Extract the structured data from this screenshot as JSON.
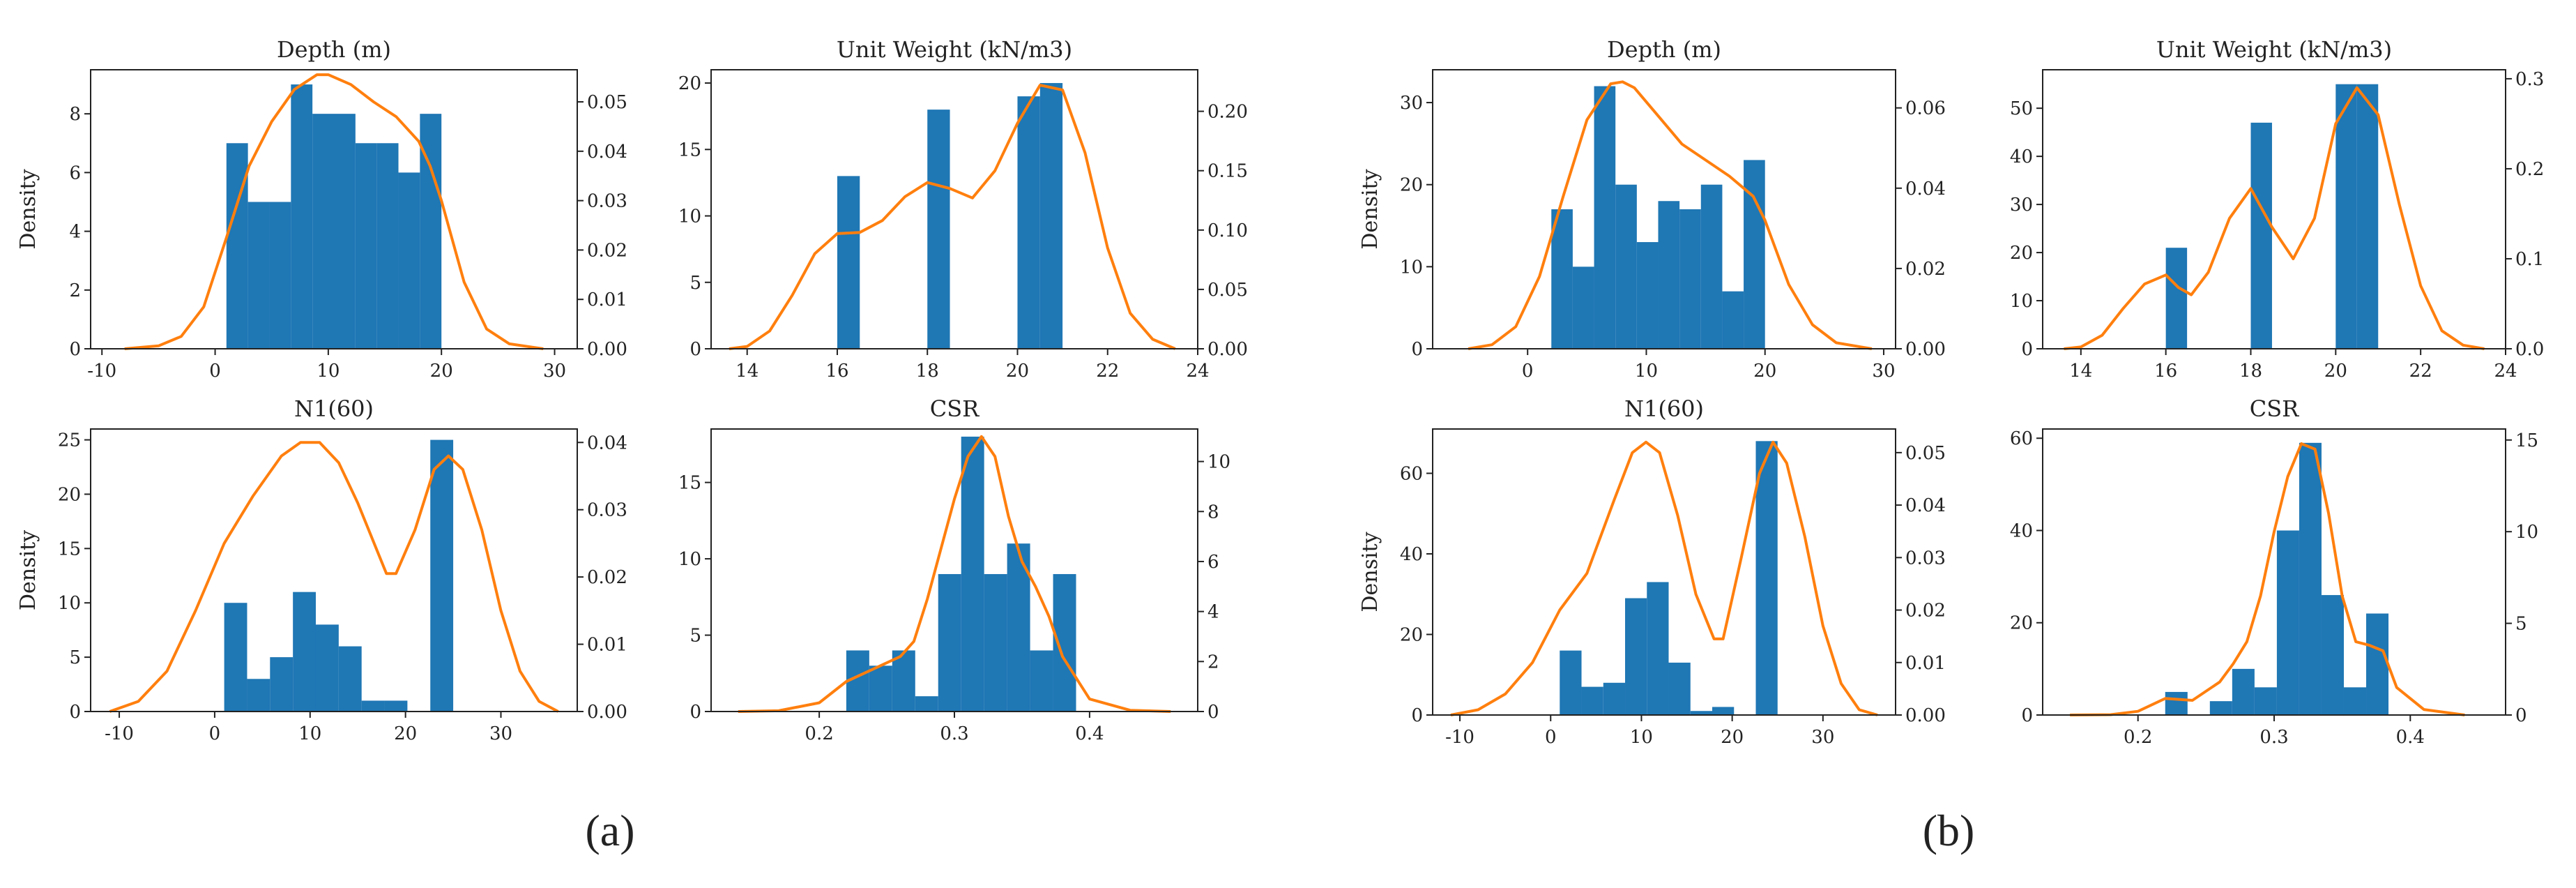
{
  "colors": {
    "bar": "#1f77b4",
    "kde": "#ff7f0e",
    "axis": "#222222"
  },
  "panel_labels": [
    "(a)",
    "(b)"
  ],
  "chart_data": [
    {
      "type": "bar",
      "group": "(a)",
      "title": "Depth (m)",
      "ylabel": "Density",
      "xlim": [
        -11,
        32
      ],
      "xticks": [
        -10,
        0,
        10,
        20,
        30
      ],
      "ylim": [
        0,
        9.5
      ],
      "yticks": [
        0,
        2,
        4,
        6,
        8
      ],
      "y2lim": [
        0,
        0.0565
      ],
      "y2ticks": [
        0.0,
        0.01,
        0.02,
        0.03,
        0.04,
        0.05
      ],
      "y2format": 2,
      "bins": [
        [
          1,
          2.9,
          7
        ],
        [
          2.9,
          4.8,
          5
        ],
        [
          4.8,
          6.7,
          5
        ],
        [
          6.7,
          8.6,
          9
        ],
        [
          8.6,
          10.5,
          8
        ],
        [
          10.5,
          12.4,
          8
        ],
        [
          12.4,
          14.3,
          7
        ],
        [
          14.3,
          16.2,
          7
        ],
        [
          16.2,
          18.1,
          6
        ],
        [
          18.1,
          20,
          8
        ]
      ],
      "kde": [
        [
          -8,
          0.0
        ],
        [
          -5,
          0.0006
        ],
        [
          -3,
          0.0025
        ],
        [
          -1,
          0.0085
        ],
        [
          1,
          0.0225
        ],
        [
          3,
          0.037
        ],
        [
          5,
          0.046
        ],
        [
          7,
          0.0525
        ],
        [
          9,
          0.0555
        ],
        [
          10,
          0.0555
        ],
        [
          12,
          0.0535
        ],
        [
          14,
          0.05
        ],
        [
          16,
          0.047
        ],
        [
          18,
          0.042
        ],
        [
          19,
          0.037
        ],
        [
          20,
          0.03
        ],
        [
          22,
          0.0135
        ],
        [
          24,
          0.004
        ],
        [
          26,
          0.001
        ],
        [
          29,
          0.0
        ]
      ]
    },
    {
      "type": "bar",
      "group": "(a)",
      "title": "Unit Weight (kN/m3)",
      "ylabel": "",
      "xlim": [
        13.2,
        24
      ],
      "xticks": [
        14,
        16,
        18,
        20,
        22,
        24
      ],
      "ylim": [
        0,
        21
      ],
      "yticks": [
        0,
        5,
        10,
        15,
        20
      ],
      "y2lim": [
        0,
        0.235
      ],
      "y2ticks": [
        0.0,
        0.05,
        0.1,
        0.15,
        0.2
      ],
      "y2format": 2,
      "bins": [
        [
          16,
          16.5,
          13
        ],
        [
          18,
          18.5,
          18
        ],
        [
          20,
          20.5,
          19
        ],
        [
          20.5,
          21,
          20
        ]
      ],
      "kde": [
        [
          13.6,
          0.0
        ],
        [
          14,
          0.002
        ],
        [
          14.5,
          0.015
        ],
        [
          15,
          0.045
        ],
        [
          15.5,
          0.08
        ],
        [
          16,
          0.097
        ],
        [
          16.5,
          0.098
        ],
        [
          17,
          0.108
        ],
        [
          17.5,
          0.128
        ],
        [
          18,
          0.14
        ],
        [
          18.5,
          0.135
        ],
        [
          19,
          0.127
        ],
        [
          19.5,
          0.15
        ],
        [
          20,
          0.19
        ],
        [
          20.5,
          0.222
        ],
        [
          21,
          0.218
        ],
        [
          21.5,
          0.165
        ],
        [
          22,
          0.085
        ],
        [
          22.5,
          0.03
        ],
        [
          23,
          0.008
        ],
        [
          23.5,
          0.0
        ]
      ]
    },
    {
      "type": "bar",
      "group": "(a)",
      "title": "N1(60)",
      "ylabel": "Density",
      "xlim": [
        -13,
        38
      ],
      "xticks": [
        -10,
        0,
        10,
        20,
        30
      ],
      "ylim": [
        0,
        26
      ],
      "yticks": [
        0,
        5,
        10,
        15,
        20,
        25
      ],
      "y2lim": [
        0,
        0.042
      ],
      "y2ticks": [
        0.0,
        0.01,
        0.02,
        0.03,
        0.04
      ],
      "y2format": 2,
      "bins": [
        [
          1,
          3.4,
          10
        ],
        [
          3.4,
          5.8,
          3
        ],
        [
          5.8,
          8.2,
          5
        ],
        [
          8.2,
          10.6,
          11
        ],
        [
          10.6,
          13,
          8
        ],
        [
          13,
          15.4,
          6
        ],
        [
          15.4,
          17.8,
          1
        ],
        [
          17.8,
          20.2,
          1
        ],
        [
          22.6,
          25,
          25
        ]
      ],
      "kde": [
        [
          -11,
          0.0
        ],
        [
          -8,
          0.0015
        ],
        [
          -5,
          0.006
        ],
        [
          -2,
          0.015
        ],
        [
          1,
          0.025
        ],
        [
          4,
          0.032
        ],
        [
          7,
          0.038
        ],
        [
          9,
          0.04
        ],
        [
          11,
          0.04
        ],
        [
          13,
          0.037
        ],
        [
          15,
          0.031
        ],
        [
          17,
          0.024
        ],
        [
          18,
          0.0205
        ],
        [
          19,
          0.0205
        ],
        [
          21,
          0.027
        ],
        [
          23,
          0.036
        ],
        [
          24.5,
          0.038
        ],
        [
          26,
          0.036
        ],
        [
          28,
          0.027
        ],
        [
          30,
          0.015
        ],
        [
          32,
          0.006
        ],
        [
          34,
          0.0015
        ],
        [
          36,
          0.0
        ]
      ]
    },
    {
      "type": "bar",
      "group": "(a)",
      "title": "CSR",
      "ylabel": "",
      "xlim": [
        0.12,
        0.48
      ],
      "xticks": [
        0.2,
        0.3,
        0.4
      ],
      "ylim": [
        0,
        18.5
      ],
      "yticks": [
        0,
        5,
        10,
        15
      ],
      "y2lim": [
        0,
        11.3
      ],
      "y2ticks": [
        0,
        2,
        4,
        6,
        8,
        10
      ],
      "y2format": 0,
      "bins": [
        [
          0.22,
          0.237,
          4
        ],
        [
          0.237,
          0.254,
          3
        ],
        [
          0.254,
          0.271,
          4
        ],
        [
          0.271,
          0.288,
          1
        ],
        [
          0.288,
          0.305,
          9
        ],
        [
          0.305,
          0.322,
          18
        ],
        [
          0.322,
          0.339,
          9
        ],
        [
          0.339,
          0.356,
          11
        ],
        [
          0.356,
          0.373,
          4
        ],
        [
          0.373,
          0.39,
          9
        ]
      ],
      "kde": [
        [
          0.14,
          0.0
        ],
        [
          0.17,
          0.03
        ],
        [
          0.2,
          0.35
        ],
        [
          0.22,
          1.2
        ],
        [
          0.24,
          1.7
        ],
        [
          0.26,
          2.2
        ],
        [
          0.27,
          2.8
        ],
        [
          0.28,
          4.5
        ],
        [
          0.29,
          6.5
        ],
        [
          0.3,
          8.5
        ],
        [
          0.31,
          10.2
        ],
        [
          0.32,
          11.0
        ],
        [
          0.33,
          10.2
        ],
        [
          0.34,
          7.8
        ],
        [
          0.35,
          6.0
        ],
        [
          0.36,
          5.0
        ],
        [
          0.37,
          3.8
        ],
        [
          0.38,
          2.2
        ],
        [
          0.4,
          0.5
        ],
        [
          0.43,
          0.05
        ],
        [
          0.46,
          0.0
        ]
      ]
    },
    {
      "type": "bar",
      "group": "(b)",
      "title": "Depth (m)",
      "ylabel": "Density",
      "xlim": [
        -8,
        31
      ],
      "xticks": [
        0,
        10,
        20,
        30
      ],
      "ylim": [
        0,
        34
      ],
      "yticks": [
        0,
        10,
        20,
        30
      ],
      "y2lim": [
        0,
        0.0695
      ],
      "y2ticks": [
        0.0,
        0.02,
        0.04,
        0.06
      ],
      "y2format": 2,
      "bins": [
        [
          2,
          3.8,
          17
        ],
        [
          3.8,
          5.6,
          10
        ],
        [
          5.6,
          7.4,
          32
        ],
        [
          7.4,
          9.2,
          20
        ],
        [
          9.2,
          11,
          13
        ],
        [
          11,
          12.8,
          18
        ],
        [
          12.8,
          14.6,
          17
        ],
        [
          14.6,
          16.4,
          20
        ],
        [
          16.4,
          18.2,
          7
        ],
        [
          18.2,
          20,
          23
        ]
      ],
      "kde": [
        [
          -5,
          0.0
        ],
        [
          -3,
          0.001
        ],
        [
          -1,
          0.0055
        ],
        [
          1,
          0.018
        ],
        [
          3,
          0.038
        ],
        [
          5,
          0.057
        ],
        [
          7,
          0.066
        ],
        [
          8,
          0.0665
        ],
        [
          9,
          0.065
        ],
        [
          11,
          0.058
        ],
        [
          13,
          0.051
        ],
        [
          15,
          0.047
        ],
        [
          17,
          0.043
        ],
        [
          19,
          0.038
        ],
        [
          20,
          0.032
        ],
        [
          22,
          0.016
        ],
        [
          24,
          0.006
        ],
        [
          26,
          0.0015
        ],
        [
          29,
          0.0
        ]
      ]
    },
    {
      "type": "bar",
      "group": "(b)",
      "title": "Unit Weight (kN/m3)",
      "ylabel": "",
      "xlim": [
        13.1,
        24
      ],
      "xticks": [
        14,
        16,
        18,
        20,
        22,
        24
      ],
      "ylim": [
        0,
        58
      ],
      "yticks": [
        0,
        10,
        20,
        30,
        40,
        50
      ],
      "y2lim": [
        0,
        0.31
      ],
      "y2ticks": [
        0.0,
        0.1,
        0.2,
        0.3
      ],
      "y2format": 1,
      "bins": [
        [
          16,
          16.5,
          21
        ],
        [
          18,
          18.5,
          47
        ],
        [
          20,
          20.5,
          55
        ],
        [
          20.5,
          21,
          55
        ]
      ],
      "kde": [
        [
          13.6,
          0.0
        ],
        [
          14,
          0.002
        ],
        [
          14.5,
          0.015
        ],
        [
          15,
          0.045
        ],
        [
          15.5,
          0.072
        ],
        [
          16,
          0.082
        ],
        [
          16.3,
          0.068
        ],
        [
          16.6,
          0.06
        ],
        [
          17,
          0.085
        ],
        [
          17.5,
          0.145
        ],
        [
          18,
          0.178
        ],
        [
          18.5,
          0.135
        ],
        [
          19,
          0.1
        ],
        [
          19.5,
          0.145
        ],
        [
          20,
          0.25
        ],
        [
          20.5,
          0.29
        ],
        [
          21,
          0.26
        ],
        [
          21.5,
          0.16
        ],
        [
          22,
          0.07
        ],
        [
          22.5,
          0.02
        ],
        [
          23,
          0.004
        ],
        [
          23.5,
          0.0
        ]
      ]
    },
    {
      "type": "bar",
      "group": "(b)",
      "title": "N1(60)",
      "ylabel": "Density",
      "xlim": [
        -13,
        38
      ],
      "xticks": [
        -10,
        0,
        10,
        20,
        30
      ],
      "ylim": [
        0,
        71
      ],
      "yticks": [
        0,
        20,
        40,
        60
      ],
      "y2lim": [
        0,
        0.0545
      ],
      "y2ticks": [
        0.0,
        0.01,
        0.02,
        0.03,
        0.04,
        0.05
      ],
      "y2format": 2,
      "bins": [
        [
          1,
          3.4,
          16
        ],
        [
          3.4,
          5.8,
          7
        ],
        [
          5.8,
          8.2,
          8
        ],
        [
          8.2,
          10.6,
          29
        ],
        [
          10.6,
          13,
          33
        ],
        [
          13,
          15.4,
          13
        ],
        [
          15.4,
          17.8,
          1
        ],
        [
          17.8,
          20.2,
          2
        ],
        [
          22.6,
          25,
          68
        ]
      ],
      "kde": [
        [
          -11,
          0.0
        ],
        [
          -8,
          0.001
        ],
        [
          -5,
          0.004
        ],
        [
          -2,
          0.01
        ],
        [
          1,
          0.02
        ],
        [
          4,
          0.027
        ],
        [
          7,
          0.041
        ],
        [
          9,
          0.05
        ],
        [
          10.5,
          0.052
        ],
        [
          12,
          0.05
        ],
        [
          14,
          0.038
        ],
        [
          16,
          0.023
        ],
        [
          18,
          0.0145
        ],
        [
          19,
          0.0145
        ],
        [
          21,
          0.03
        ],
        [
          23,
          0.046
        ],
        [
          24.5,
          0.052
        ],
        [
          26,
          0.048
        ],
        [
          28,
          0.034
        ],
        [
          30,
          0.017
        ],
        [
          32,
          0.006
        ],
        [
          34,
          0.001
        ],
        [
          36,
          0.0
        ]
      ]
    },
    {
      "type": "bar",
      "group": "(b)",
      "title": "CSR",
      "ylabel": "",
      "xlim": [
        0.13,
        0.47
      ],
      "xticks": [
        0.2,
        0.3,
        0.4
      ],
      "ylim": [
        0,
        62
      ],
      "yticks": [
        0,
        20,
        40,
        60
      ],
      "y2lim": [
        0,
        15.6
      ],
      "y2ticks": [
        0,
        5,
        10,
        15
      ],
      "y2format": 0,
      "bins": [
        [
          0.22,
          0.2364,
          5
        ],
        [
          0.2364,
          0.2528,
          0
        ],
        [
          0.2528,
          0.2692,
          3
        ],
        [
          0.2692,
          0.2856,
          10
        ],
        [
          0.2856,
          0.302,
          6
        ],
        [
          0.302,
          0.3184,
          40
        ],
        [
          0.3184,
          0.3348,
          59
        ],
        [
          0.3348,
          0.3512,
          26
        ],
        [
          0.3512,
          0.3676,
          6
        ],
        [
          0.3676,
          0.384,
          22
        ]
      ],
      "kde": [
        [
          0.15,
          0.0
        ],
        [
          0.18,
          0.02
        ],
        [
          0.2,
          0.2
        ],
        [
          0.22,
          0.9
        ],
        [
          0.24,
          0.8
        ],
        [
          0.26,
          1.8
        ],
        [
          0.27,
          2.8
        ],
        [
          0.28,
          4.0
        ],
        [
          0.29,
          6.5
        ],
        [
          0.3,
          10.0
        ],
        [
          0.31,
          13.0
        ],
        [
          0.32,
          14.8
        ],
        [
          0.33,
          14.5
        ],
        [
          0.34,
          11.0
        ],
        [
          0.35,
          6.5
        ],
        [
          0.36,
          4.0
        ],
        [
          0.37,
          3.8
        ],
        [
          0.38,
          3.5
        ],
        [
          0.39,
          1.5
        ],
        [
          0.41,
          0.3
        ],
        [
          0.44,
          0.0
        ]
      ]
    }
  ]
}
